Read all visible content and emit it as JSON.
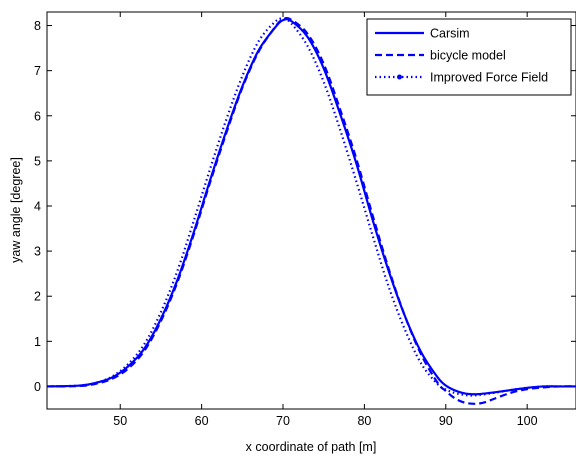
{
  "chart_data": {
    "type": "line",
    "title": "",
    "xlabel": "x coordinate of path [m]",
    "ylabel": "yaw angle [degree]",
    "xlim": [
      41,
      106
    ],
    "ylim": [
      -0.5,
      8.3
    ],
    "xticks": [
      50,
      60,
      70,
      80,
      90,
      100
    ],
    "yticks": [
      0,
      1,
      2,
      3,
      4,
      5,
      6,
      7,
      8
    ],
    "grid": false,
    "legend_position": "top-right",
    "series": [
      {
        "name": "Carsim",
        "style": "solid",
        "color": "#0000ff",
        "x": [
          41,
          45,
          47,
          49,
          51,
          53,
          55,
          57,
          59,
          61,
          63,
          65,
          67,
          69,
          70,
          71,
          73,
          75,
          77,
          79,
          81,
          83,
          85,
          87,
          89,
          90,
          91,
          92,
          93,
          94,
          96,
          98,
          100,
          102,
          104,
          106
        ],
        "y": [
          0.0,
          0.02,
          0.08,
          0.2,
          0.45,
          0.85,
          1.5,
          2.35,
          3.4,
          4.55,
          5.65,
          6.65,
          7.45,
          7.95,
          8.12,
          8.1,
          7.75,
          7.05,
          6.05,
          4.95,
          3.7,
          2.55,
          1.55,
          0.75,
          0.2,
          0.02,
          -0.08,
          -0.14,
          -0.17,
          -0.17,
          -0.13,
          -0.08,
          -0.03,
          0.0,
          0.0,
          0.0
        ]
      },
      {
        "name": "bicycle model",
        "style": "dashed",
        "color": "#0000ff",
        "x": [
          41,
          45,
          47,
          49,
          51,
          53,
          55,
          57,
          59,
          61,
          63,
          65,
          67,
          69,
          70,
          71,
          73,
          75,
          77,
          79,
          81,
          83,
          85,
          87,
          89,
          90,
          91,
          92,
          93,
          94,
          95,
          96,
          98,
          100,
          102,
          104,
          106
        ],
        "y": [
          0.0,
          0.01,
          0.06,
          0.17,
          0.4,
          0.8,
          1.45,
          2.3,
          3.35,
          4.5,
          5.6,
          6.62,
          7.42,
          7.96,
          8.14,
          8.13,
          7.82,
          7.15,
          6.15,
          5.05,
          3.8,
          2.6,
          1.55,
          0.7,
          0.08,
          -0.1,
          -0.25,
          -0.34,
          -0.38,
          -0.38,
          -0.34,
          -0.27,
          -0.14,
          -0.06,
          -0.02,
          0.0,
          0.0
        ]
      },
      {
        "name": "Improved Force Field",
        "style": "dotted",
        "color": "#0000ff",
        "x": [
          41,
          45,
          47,
          49,
          51,
          53,
          55,
          57,
          59,
          61,
          63,
          65,
          67,
          69,
          70,
          71,
          73,
          75,
          77,
          79,
          81,
          83,
          85,
          87,
          89,
          90,
          91,
          92,
          93,
          94,
          96,
          98,
          100,
          102,
          104,
          106
        ],
        "y": [
          0.0,
          0.02,
          0.08,
          0.22,
          0.5,
          0.95,
          1.65,
          2.55,
          3.65,
          4.8,
          5.9,
          6.88,
          7.65,
          8.08,
          8.15,
          8.05,
          7.55,
          6.75,
          5.7,
          4.55,
          3.35,
          2.2,
          1.25,
          0.5,
          0.05,
          -0.07,
          -0.14,
          -0.18,
          -0.2,
          -0.19,
          -0.14,
          -0.08,
          -0.03,
          0.0,
          0.0,
          0.0
        ]
      }
    ]
  }
}
